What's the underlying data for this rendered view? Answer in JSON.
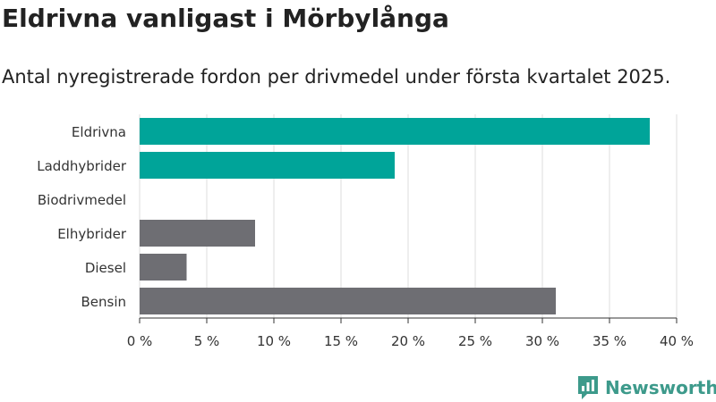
{
  "header": {
    "title": "Eldrivna vanligast i Mörbylånga",
    "subtitle": "Antal nyregistrerade fordon per drivmedel under första kvartalet 2025."
  },
  "chart_data": {
    "type": "bar",
    "orientation": "horizontal",
    "categories": [
      "Eldrivna",
      "Laddhybrider",
      "Biodrivmedel",
      "Elhybrider",
      "Diesel",
      "Bensin"
    ],
    "values": [
      38.0,
      19.0,
      0,
      8.6,
      3.5,
      31.0
    ],
    "colors": [
      "#00a499",
      "#00a499",
      "#00a499",
      "#6e6e73",
      "#6e6e73",
      "#6e6e73"
    ],
    "xlim": [
      0,
      40
    ],
    "x_ticks": [
      0,
      5,
      10,
      15,
      20,
      25,
      30,
      35,
      40
    ],
    "x_tick_labels": [
      "0 %",
      "5 %",
      "10 %",
      "15 %",
      "20 %",
      "25 %",
      "30 %",
      "35 %",
      "40 %"
    ],
    "grid": "vertical",
    "legend": "none"
  },
  "branding": {
    "logo_text": "Newsworthy",
    "logo_color": "#3d9a8b"
  }
}
